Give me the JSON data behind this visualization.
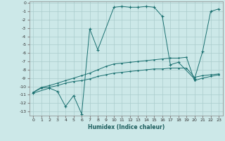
{
  "xlabel": "Humidex (Indice chaleur)",
  "bg_color": "#cce8e8",
  "line_color": "#1a7070",
  "grid_color": "#aacccc",
  "xlim": [
    -0.5,
    23.5
  ],
  "ylim": [
    -13.5,
    0.2
  ],
  "xticks": [
    0,
    1,
    2,
    3,
    4,
    5,
    6,
    7,
    8,
    9,
    10,
    11,
    12,
    13,
    14,
    15,
    16,
    17,
    18,
    19,
    20,
    21,
    22,
    23
  ],
  "yticks": [
    0,
    -1,
    -2,
    -3,
    -4,
    -5,
    -6,
    -7,
    -8,
    -9,
    -10,
    -11,
    -12,
    -13
  ],
  "line1_x": [
    0,
    1,
    2,
    3,
    4,
    5,
    6,
    7,
    8,
    9,
    10,
    11,
    12,
    13,
    14,
    15,
    16,
    17,
    18,
    19,
    20,
    21,
    22,
    23
  ],
  "line1_y": [
    -10.7,
    -10.2,
    -10.1,
    -9.9,
    -9.6,
    -9.4,
    -9.3,
    -9.1,
    -8.8,
    -8.6,
    -8.4,
    -8.3,
    -8.2,
    -8.1,
    -8.0,
    -7.9,
    -7.9,
    -7.8,
    -7.8,
    -7.8,
    -8.9,
    -8.7,
    -8.6,
    -8.5
  ],
  "line2_x": [
    0,
    1,
    2,
    3,
    4,
    5,
    6,
    7,
    8,
    9,
    10,
    11,
    12,
    13,
    14,
    15,
    16,
    17,
    18,
    19,
    20,
    21,
    22,
    23
  ],
  "line2_y": [
    -10.7,
    -10.1,
    -9.9,
    -9.6,
    -9.3,
    -9.0,
    -8.7,
    -8.4,
    -8.0,
    -7.6,
    -7.3,
    -7.2,
    -7.1,
    -7.0,
    -6.9,
    -6.8,
    -6.7,
    -6.6,
    -6.6,
    -6.5,
    -9.3,
    -9.0,
    -8.8,
    -8.6
  ],
  "line3_x": [
    0,
    2,
    3,
    4,
    5,
    6,
    7,
    8,
    10,
    11,
    12,
    13,
    14,
    15,
    16,
    17,
    18,
    20,
    21,
    22,
    23
  ],
  "line3_y": [
    -10.8,
    -10.2,
    -10.6,
    -12.4,
    -11.1,
    -13.3,
    -3.1,
    -5.6,
    -0.5,
    -0.4,
    -0.5,
    -0.5,
    -0.4,
    -0.5,
    -1.6,
    -7.4,
    -7.1,
    -9.1,
    -5.8,
    -1.0,
    -0.7
  ]
}
